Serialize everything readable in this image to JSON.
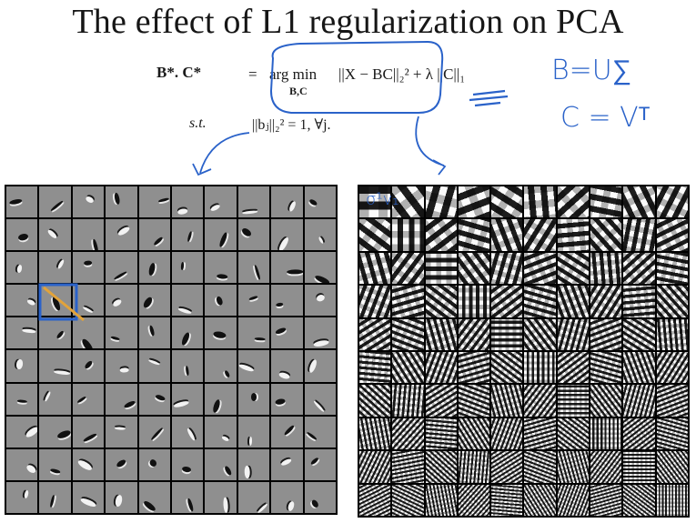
{
  "slide": {
    "title": "The effect of L1 regularization on PCA"
  },
  "equation": {
    "lhs": "B*. C*",
    "equals": "=",
    "argmin": "arg min",
    "argmin_sub": "B,C",
    "objective": "||X − BC||₂² + λ ||C||₁",
    "st": "s.t.",
    "constraint": "||bⱼ||₂² = 1, ∀j."
  },
  "handwritten": {
    "b_eq": "B=U∑",
    "c_eq": "C = Vᵀ",
    "sigma_v": "σ¹v₁"
  },
  "panels": {
    "left": {
      "rows": 10,
      "cols": 10,
      "style": "sparse-strokes"
    },
    "right": {
      "rows": 10,
      "cols": 10,
      "style": "dense-pca-patterns"
    }
  },
  "colors": {
    "annotation_blue": "#2a62c9",
    "highlight_orange": "#e2a33a",
    "patch_gray": "#8f8f8f"
  }
}
